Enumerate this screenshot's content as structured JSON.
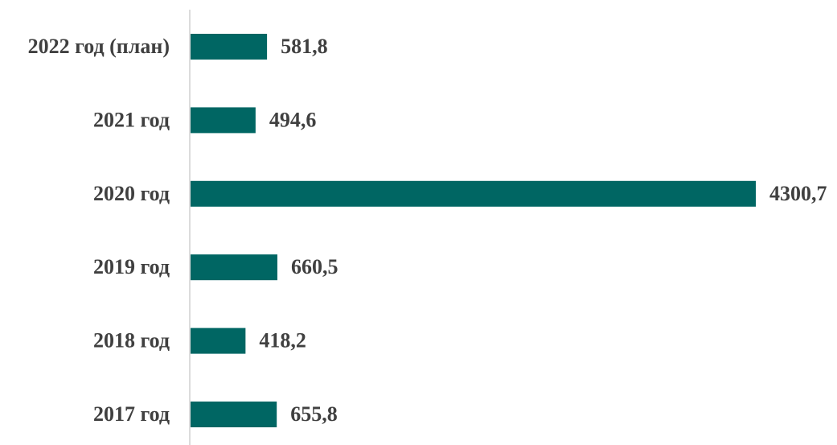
{
  "chart_data": {
    "type": "bar",
    "orientation": "horizontal",
    "categories": [
      "2022 год (план)",
      "2021 год",
      "2020 год",
      "2019 год",
      "2018 год",
      "2017 год"
    ],
    "values": [
      581.8,
      494.6,
      4300.7,
      660.5,
      418.2,
      655.8
    ],
    "value_labels": [
      "581,8",
      "494,6",
      "4300,7",
      "660,5",
      "418,2",
      "655,8"
    ],
    "color": "#006663"
  }
}
